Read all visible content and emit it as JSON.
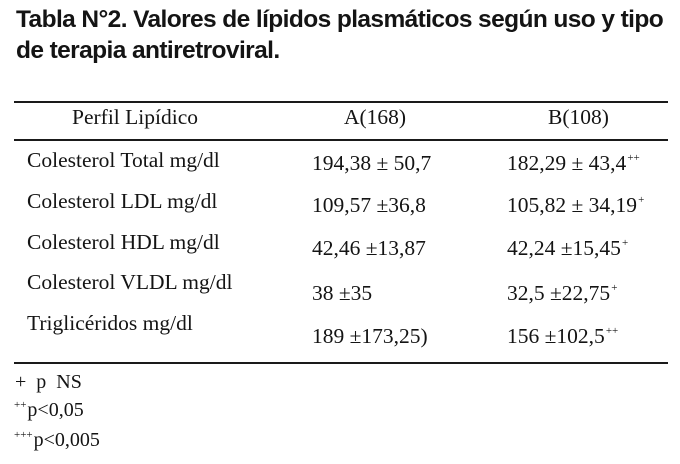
{
  "table": {
    "title_line1": "Tabla N°2. Valores de lípidos plasmáticos según uso y tipo",
    "title_line2": "de terapia antiretroviral.",
    "headers": {
      "profile": "Perfil Lipídico",
      "group_a": "A(168)",
      "group_b": "B(108)"
    },
    "rows": [
      {
        "label": "Colesterol Total mg/dl",
        "a": "194,38 ± 50,7",
        "b": "182,29 ± 43,4",
        "b_mark": "++"
      },
      {
        "label": "Colesterol LDL mg/dl",
        "a": "109,57 ±36,8",
        "b": "105,82 ± 34,19",
        "b_mark": "+"
      },
      {
        "label": "Colesterol HDL mg/dl",
        "a": "42,46 ±13,87",
        "b": "42,24 ±15,45",
        "b_mark": "+"
      },
      {
        "label": "Colesterol VLDL mg/dl",
        "a": "38 ±35",
        "b": "32,5 ±22,75",
        "b_mark": "+"
      },
      {
        "label": "Triglicéridos mg/dl",
        "a": "189 ±173,25)",
        "b": "156 ±102,5",
        "b_mark": "++"
      }
    ]
  },
  "footnotes": [
    {
      "mark": "",
      "text": "+  p  NS"
    },
    {
      "mark": "++",
      "text": "p<0,05"
    },
    {
      "mark": "+++",
      "text": "p<0,005"
    }
  ]
}
